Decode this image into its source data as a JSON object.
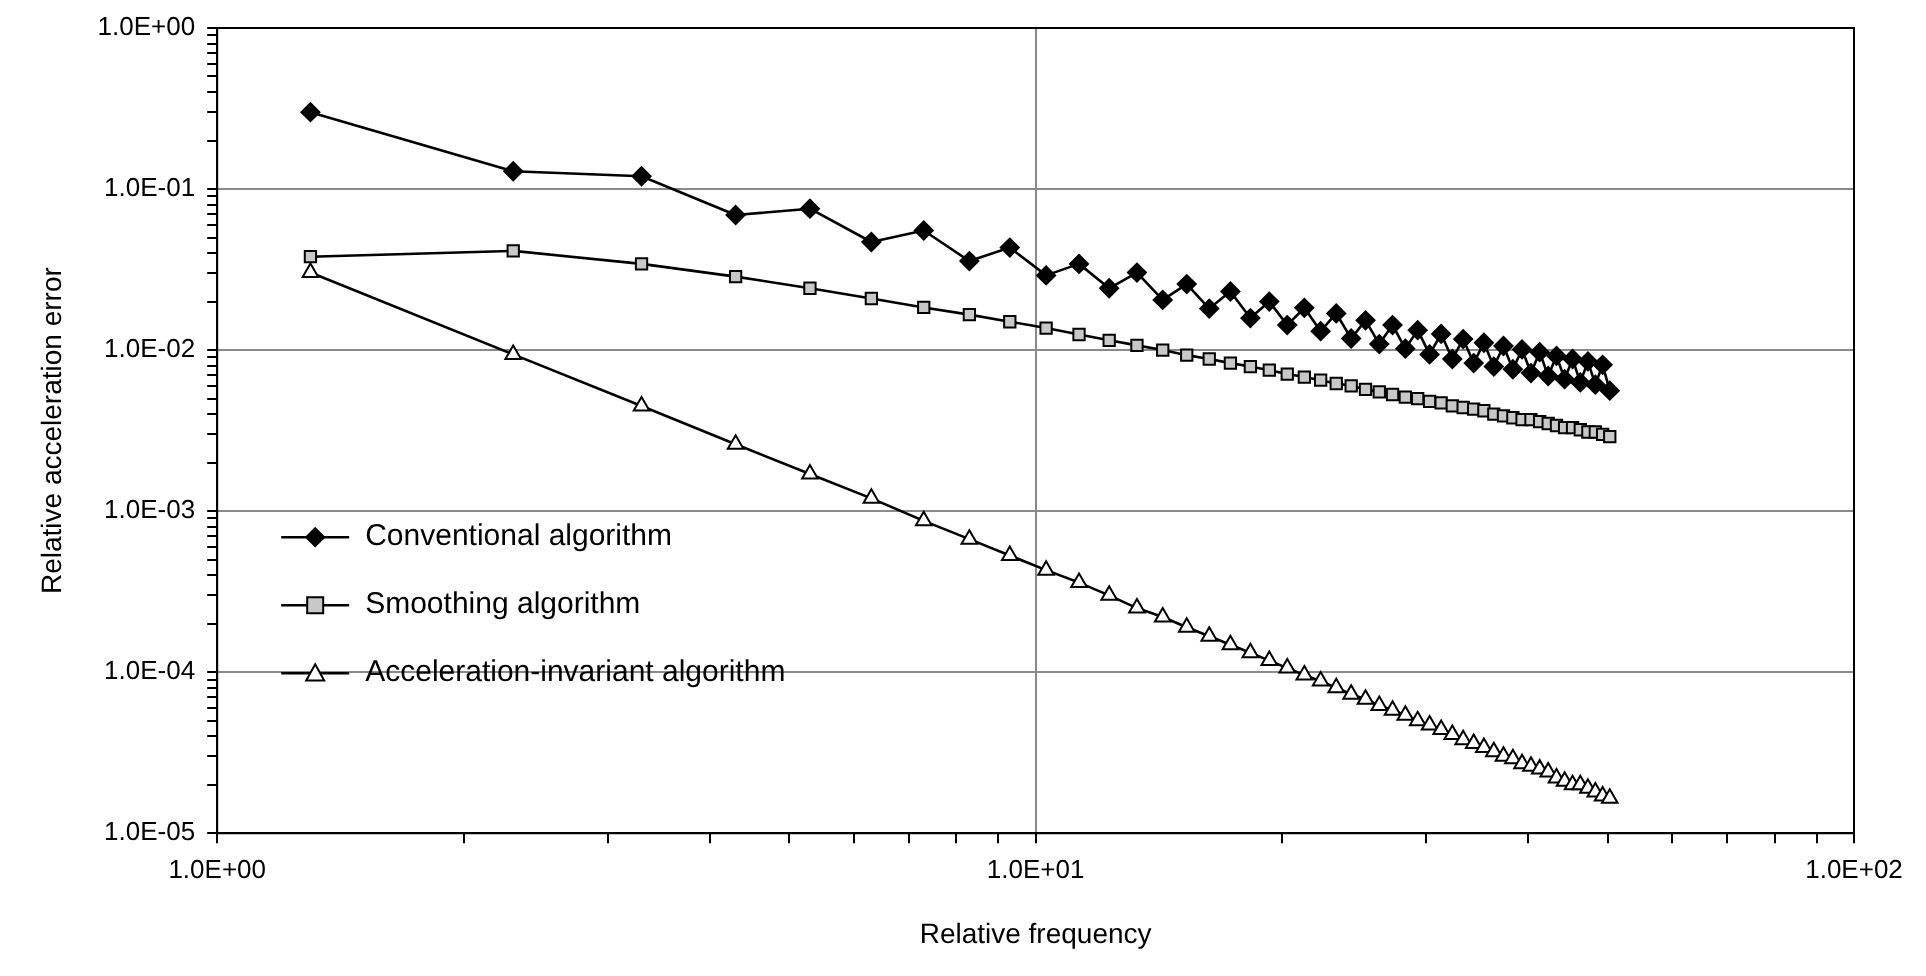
{
  "chart_data": {
    "type": "line",
    "xlabel": "Relative frequency",
    "ylabel": "Relative acceleration error",
    "log": "xy",
    "grid": true,
    "legend": "bottom left",
    "line_style": "solid",
    "xlim": [
      1,
      100
    ],
    "ylim": [
      1e-05,
      1
    ],
    "xticks": [
      {
        "value": 1,
        "label": "1.0E+00"
      },
      {
        "value": 2,
        "label": null
      },
      {
        "value": 3,
        "label": null
      },
      {
        "value": 4,
        "label": null
      },
      {
        "value": 5,
        "label": null
      },
      {
        "value": 6,
        "label": null
      },
      {
        "value": 7,
        "label": null
      },
      {
        "value": 8,
        "label": null
      },
      {
        "value": 9,
        "label": null
      },
      {
        "value": 10,
        "label": "1.0E+01"
      },
      {
        "value": 20,
        "label": null
      },
      {
        "value": 30,
        "label": null
      },
      {
        "value": 40,
        "label": null
      },
      {
        "value": 50,
        "label": null
      },
      {
        "value": 60,
        "label": null
      },
      {
        "value": 70,
        "label": null
      },
      {
        "value": 80,
        "label": null
      },
      {
        "value": 90,
        "label": null
      },
      {
        "value": 100,
        "label": "1.0E+02"
      }
    ],
    "yticks": [
      {
        "value": 1e-05,
        "label": "1.0E-05"
      },
      {
        "value": 2e-05,
        "label": null
      },
      {
        "value": 3e-05,
        "label": null
      },
      {
        "value": 4e-05,
        "label": null
      },
      {
        "value": 5e-05,
        "label": null
      },
      {
        "value": 6e-05,
        "label": null
      },
      {
        "value": 7e-05,
        "label": null
      },
      {
        "value": 8e-05,
        "label": null
      },
      {
        "value": 9e-05,
        "label": null
      },
      {
        "value": 0.0001,
        "label": "1.0E-04"
      },
      {
        "value": 0.0002,
        "label": null
      },
      {
        "value": 0.0003,
        "label": null
      },
      {
        "value": 0.0004,
        "label": null
      },
      {
        "value": 0.0005,
        "label": null
      },
      {
        "value": 0.0006,
        "label": null
      },
      {
        "value": 0.0007,
        "label": null
      },
      {
        "value": 0.0008,
        "label": null
      },
      {
        "value": 0.0009,
        "label": null
      },
      {
        "value": 0.001,
        "label": "1.0E-03"
      },
      {
        "value": 0.002,
        "label": null
      },
      {
        "value": 0.003,
        "label": null
      },
      {
        "value": 0.004,
        "label": null
      },
      {
        "value": 0.005,
        "label": null
      },
      {
        "value": 0.006,
        "label": null
      },
      {
        "value": 0.007,
        "label": null
      },
      {
        "value": 0.008,
        "label": null
      },
      {
        "value": 0.009,
        "label": null
      },
      {
        "value": 0.01,
        "label": "1.0E-02"
      },
      {
        "value": 0.02,
        "label": null
      },
      {
        "value": 0.03,
        "label": null
      },
      {
        "value": 0.04,
        "label": null
      },
      {
        "value": 0.05,
        "label": null
      },
      {
        "value": 0.06,
        "label": null
      },
      {
        "value": 0.07,
        "label": null
      },
      {
        "value": 0.08,
        "label": null
      },
      {
        "value": 0.09,
        "label": null
      },
      {
        "value": 0.1,
        "label": "1.0E-01"
      },
      {
        "value": 0.2,
        "label": null
      },
      {
        "value": 0.3,
        "label": null
      },
      {
        "value": 0.4,
        "label": null
      },
      {
        "value": 0.5,
        "label": null
      },
      {
        "value": 0.6,
        "label": null
      },
      {
        "value": 0.7,
        "label": null
      },
      {
        "value": 0.8,
        "label": null
      },
      {
        "value": 0.9,
        "label": null
      },
      {
        "value": 1,
        "label": "1.0E+00"
      }
    ],
    "x": [
      1.3,
      2.3,
      3.3,
      4.3,
      5.3,
      6.3,
      7.3,
      8.3,
      9.3,
      10.3,
      11.3,
      12.3,
      13.3,
      14.3,
      15.3,
      16.3,
      17.3,
      18.3,
      19.3,
      20.3,
      21.3,
      22.3,
      23.3,
      24.3,
      25.3,
      26.3,
      27.3,
      28.3,
      29.3,
      30.3,
      31.3,
      32.3,
      33.3,
      34.3,
      35.3,
      36.3,
      37.3,
      38.3,
      39.3,
      40.3,
      41.3,
      42.3,
      43.3,
      44.3,
      45.3,
      46.3,
      47.3,
      48.3,
      49.3,
      50.3
    ],
    "series": [
      {
        "name": "Conventional algorithm",
        "color": "#000000",
        "marker": "diamond",
        "values": [
          0.3,
          0.129,
          0.12,
          0.069,
          0.0755,
          0.0469,
          0.0553,
          0.0357,
          0.0433,
          0.0291,
          0.0343,
          0.0242,
          0.0303,
          0.0205,
          0.0257,
          0.0181,
          0.0231,
          0.0158,
          0.02,
          0.0143,
          0.0183,
          0.0131,
          0.0169,
          0.0118,
          0.0153,
          0.0109,
          0.0143,
          0.0102,
          0.0133,
          0.0094,
          0.0126,
          0.0088,
          0.0117,
          0.0083,
          0.0111,
          0.0079,
          0.0106,
          0.0076,
          0.0101,
          0.0072,
          0.0097,
          0.0069,
          0.0092,
          0.0066,
          0.0088,
          0.0063,
          0.0085,
          0.0061,
          0.0081,
          0.0056
        ]
      },
      {
        "name": "Smoothing algorithm",
        "color": "#000000",
        "marker": "square",
        "values": [
          0.038,
          0.0413,
          0.0343,
          0.0286,
          0.0242,
          0.0209,
          0.0184,
          0.0166,
          0.015,
          0.0137,
          0.0125,
          0.0115,
          0.0107,
          0.01,
          0.0093,
          0.0088,
          0.0083,
          0.0079,
          0.0075,
          0.0071,
          0.0068,
          0.0065,
          0.0062,
          0.006,
          0.0057,
          0.0055,
          0.0053,
          0.0051,
          0.005,
          0.0048,
          0.0047,
          0.0045,
          0.0044,
          0.0043,
          0.0042,
          0.004,
          0.0039,
          0.0038,
          0.0037,
          0.0037,
          0.0036,
          0.0035,
          0.0034,
          0.0033,
          0.0033,
          0.0032,
          0.0031,
          0.0031,
          0.003,
          0.0029
        ]
      },
      {
        "name": "Acceleration-invariant algorithm",
        "color": "#000000",
        "marker": "triangle",
        "values": [
          0.0303,
          0.0094,
          0.0045,
          0.0026,
          0.0017,
          0.0012,
          0.00087,
          0.00067,
          0.00053,
          0.00043,
          0.00036,
          0.0003,
          0.00025,
          0.00022,
          0.00019,
          0.000167,
          0.000148,
          0.000132,
          0.000118,
          0.000106,
          9.6e-05,
          8.8e-05,
          8e-05,
          7.3e-05,
          6.8e-05,
          6.2e-05,
          5.8e-05,
          5.4e-05,
          5e-05,
          4.7e-05,
          4.4e-05,
          4.1e-05,
          3.8e-05,
          3.6e-05,
          3.4e-05,
          3.2e-05,
          3e-05,
          2.9e-05,
          2.7e-05,
          2.6e-05,
          2.5e-05,
          2.4e-05,
          2.2e-05,
          2.1e-05,
          2e-05,
          2e-05,
          1.9e-05,
          1.8e-05,
          1.7e-05,
          1.65e-05
        ]
      }
    ]
  }
}
